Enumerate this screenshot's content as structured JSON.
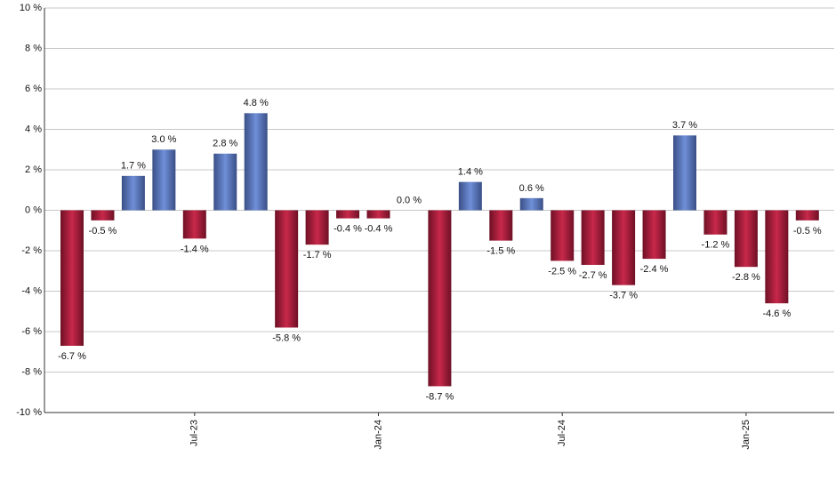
{
  "chart_data": {
    "type": "bar",
    "categories": [
      null,
      null,
      null,
      null,
      "Jul-23",
      null,
      null,
      null,
      null,
      null,
      "Jan-24",
      null,
      null,
      null,
      null,
      null,
      "Jul-24",
      null,
      null,
      null,
      null,
      null,
      "Jan-25",
      null,
      null
    ],
    "values": [
      -6.7,
      -0.5,
      1.7,
      3.0,
      -1.4,
      2.8,
      4.8,
      -5.8,
      -1.7,
      -0.4,
      -0.4,
      0.0,
      -8.7,
      1.4,
      -1.5,
      0.6,
      -2.5,
      -2.7,
      -3.7,
      -2.4,
      3.7,
      -1.2,
      -2.8,
      -4.6,
      -0.5
    ],
    "value_labels": [
      "-6.7 %",
      "-0.5 %",
      "1.7 %",
      "3.0 %",
      "-1.4 %",
      "2.8 %",
      "4.8 %",
      "-5.8 %",
      "-1.7 %",
      "-0.4 %",
      "-0.4 %",
      "0.0 %",
      "-8.7 %",
      "1.4 %",
      "-1.5 %",
      "0.6 %",
      "-2.5 %",
      "-2.7 %",
      "-3.7 %",
      "-2.4 %",
      "3.7 %",
      "-1.2 %",
      "-2.8 %",
      "-4.6 %",
      "-0.5 %"
    ],
    "positive_color": "#6f8fd8",
    "negative_color": "#c8284a",
    "ylim": [
      -10,
      10
    ],
    "yticks": [
      {
        "value": -10,
        "label": "-10 %"
      },
      {
        "value": -8,
        "label": "-8 %"
      },
      {
        "value": -6,
        "label": "-6 %"
      },
      {
        "value": -4,
        "label": "-4 %"
      },
      {
        "value": -2,
        "label": "-2 %"
      },
      {
        "value": 0,
        "label": "0 %"
      },
      {
        "value": 2,
        "label": "2 %"
      },
      {
        "value": 4,
        "label": "4 %"
      },
      {
        "value": 6,
        "label": "6 %"
      },
      {
        "value": 8,
        "label": "8 %"
      },
      {
        "value": 10,
        "label": "10 %"
      }
    ],
    "grid": true
  }
}
